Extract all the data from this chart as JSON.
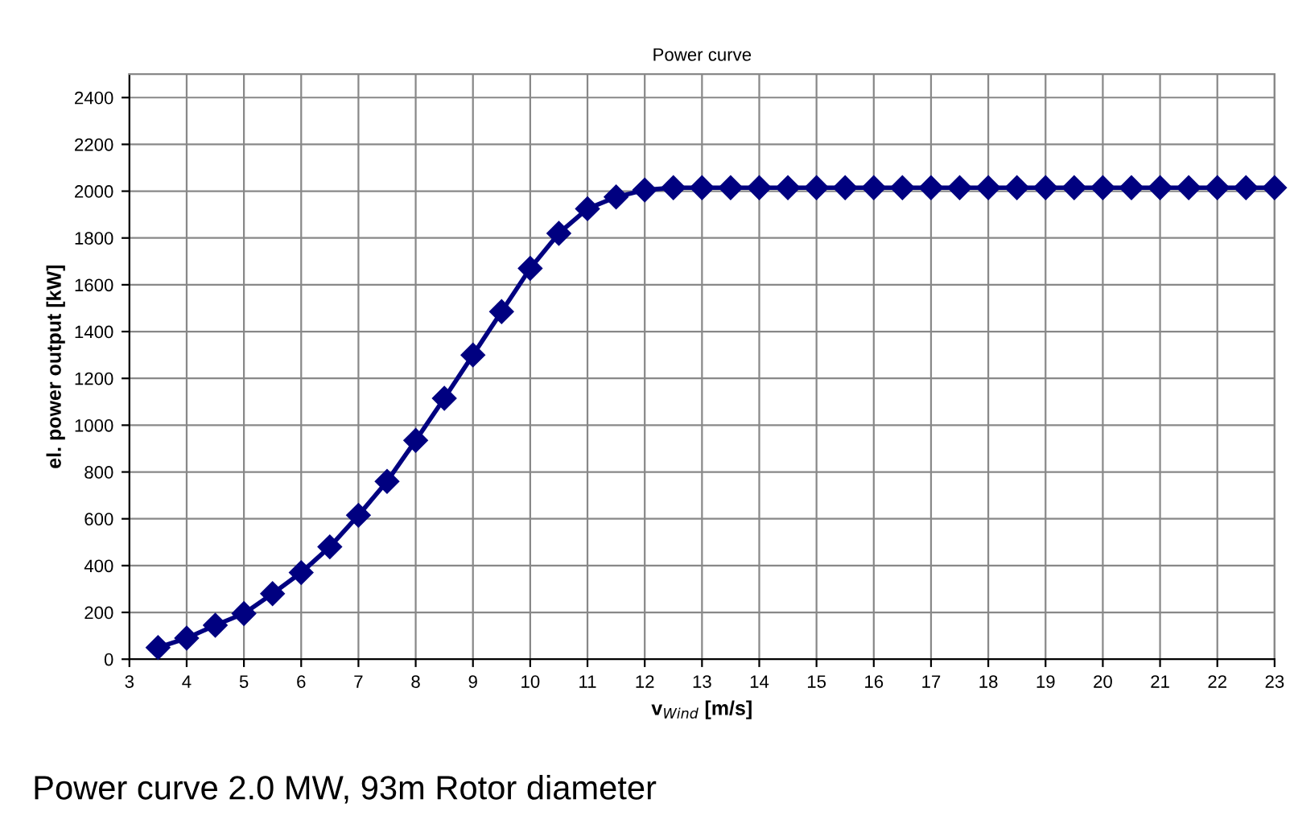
{
  "chart_data": {
    "type": "line",
    "title": "Power curve",
    "xlabel": "v$_{Wind}$ [m/s]",
    "ylabel": "el. power output [kW]",
    "annotations": [
      "Power curve 2.0 MW, 93m Rotor diameter"
    ],
    "x": [
      3.5,
      4,
      4.5,
      5,
      5.5,
      6,
      6.5,
      7,
      7.5,
      8,
      8.5,
      9,
      9.5,
      10,
      10.5,
      11,
      11.5,
      12,
      12.5,
      13,
      13.5,
      14,
      14.5,
      15,
      15.5,
      16,
      16.5,
      17,
      17.5,
      18,
      18.5,
      19,
      19.5,
      20,
      20.5,
      21,
      21.5,
      22,
      22.5,
      23
    ],
    "series": [
      {
        "color": "#000080",
        "values": [
          50,
          90,
          145,
          195,
          280,
          370,
          480,
          615,
          760,
          935,
          1115,
          1300,
          1485,
          1670,
          1820,
          1925,
          1975,
          2005,
          2015,
          2015,
          2015,
          2015,
          2015,
          2015,
          2015,
          2015,
          2015,
          2015,
          2015,
          2015,
          2015,
          2015,
          2015,
          2015,
          2015,
          2015,
          2015,
          2015,
          2015,
          2015
        ]
      }
    ],
    "xlim": [
      3,
      23
    ],
    "xticks": [
      3,
      4,
      5,
      6,
      7,
      8,
      9,
      10,
      11,
      12,
      13,
      14,
      15,
      16,
      17,
      18,
      19,
      20,
      21,
      22,
      23
    ],
    "ylim": [
      0,
      2500
    ],
    "yticks": [
      0,
      200,
      400,
      600,
      800,
      1000,
      1200,
      1400,
      1600,
      1800,
      2000,
      2200,
      2400
    ],
    "grid": true,
    "marker": "diamond",
    "line_style": "solid",
    "legend": false
  }
}
